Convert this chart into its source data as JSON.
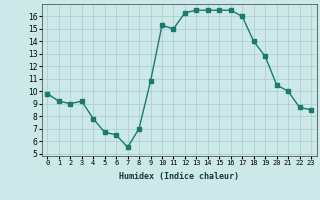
{
  "x": [
    0,
    1,
    2,
    3,
    4,
    5,
    6,
    7,
    8,
    9,
    10,
    11,
    12,
    13,
    14,
    15,
    16,
    17,
    18,
    19,
    20,
    21,
    22,
    23
  ],
  "y": [
    9.8,
    9.2,
    9.0,
    9.2,
    7.8,
    6.7,
    6.5,
    5.5,
    7.0,
    10.8,
    15.3,
    15.0,
    16.3,
    16.5,
    16.5,
    16.5,
    16.5,
    16.0,
    14.0,
    12.8,
    10.5,
    10.0,
    8.7,
    8.5
  ],
  "xlabel": "Humidex (Indice chaleur)",
  "ylim": [
    4.8,
    17.0
  ],
  "xlim": [
    -0.5,
    23.5
  ],
  "yticks": [
    5,
    6,
    7,
    8,
    9,
    10,
    11,
    12,
    13,
    14,
    15,
    16
  ],
  "xticks": [
    0,
    1,
    2,
    3,
    4,
    5,
    6,
    7,
    8,
    9,
    10,
    11,
    12,
    13,
    14,
    15,
    16,
    17,
    18,
    19,
    20,
    21,
    22,
    23
  ],
  "xtick_labels": [
    "0",
    "1",
    "2",
    "3",
    "4",
    "5",
    "6",
    "7",
    "8",
    "9",
    "10",
    "11",
    "12",
    "13",
    "14",
    "15",
    "16",
    "17",
    "18",
    "19",
    "20",
    "21",
    "22",
    "23"
  ],
  "line_color": "#1a7a6e",
  "marker": "s",
  "marker_size": 2.5,
  "bg_color": "#cce8e8",
  "grid_color": "#b0d0d0",
  "fig_bg": "#cce8e8"
}
